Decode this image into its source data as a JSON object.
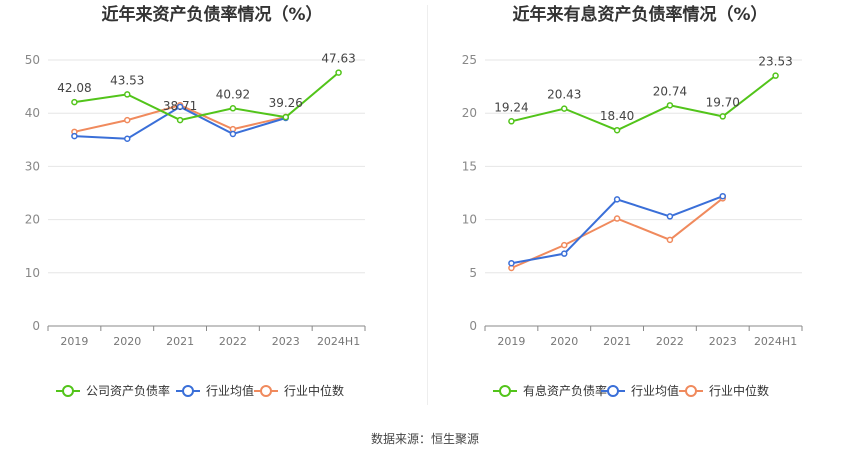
{
  "source": "数据来源：恒生聚源",
  "chart_data": [
    {
      "type": "line",
      "title": "近年来资产负债率情况（%）",
      "categories": [
        "2019",
        "2020",
        "2021",
        "2022",
        "2023",
        "2024H1"
      ],
      "ylim": [
        0,
        50
      ],
      "yticks": [
        0,
        10,
        20,
        30,
        40,
        50
      ],
      "grid": true,
      "legend": "bottom",
      "series": [
        {
          "name": "公司资产负债率",
          "color": "#52c41a",
          "values": [
            42.08,
            43.53,
            38.71,
            40.92,
            39.26,
            47.63
          ],
          "labels": true
        },
        {
          "name": "行业均值",
          "color": "#3a6fd8",
          "values": [
            35.7,
            35.2,
            41.2,
            36.1,
            39.1,
            null
          ]
        },
        {
          "name": "行业中位数",
          "color": "#f08a5d",
          "values": [
            36.5,
            38.7,
            41.5,
            37.0,
            39.3,
            null
          ]
        }
      ]
    },
    {
      "type": "line",
      "title": "近年来有息资产负债率情况（%）",
      "categories": [
        "2019",
        "2020",
        "2021",
        "2022",
        "2023",
        "2024H1"
      ],
      "ylim": [
        0,
        25
      ],
      "yticks": [
        0,
        5,
        10,
        15,
        20,
        25
      ],
      "grid": true,
      "legend": "bottom",
      "series": [
        {
          "name": "有息资产负债率",
          "color": "#52c41a",
          "values": [
            19.24,
            20.43,
            18.4,
            20.74,
            19.7,
            23.53
          ],
          "labels": true
        },
        {
          "name": "行业均值",
          "color": "#3a6fd8",
          "values": [
            5.9,
            6.8,
            11.9,
            10.3,
            12.2,
            null
          ]
        },
        {
          "name": "行业中位数",
          "color": "#f08a5d",
          "values": [
            5.45,
            7.6,
            10.1,
            8.1,
            12.0,
            null
          ]
        }
      ]
    }
  ]
}
